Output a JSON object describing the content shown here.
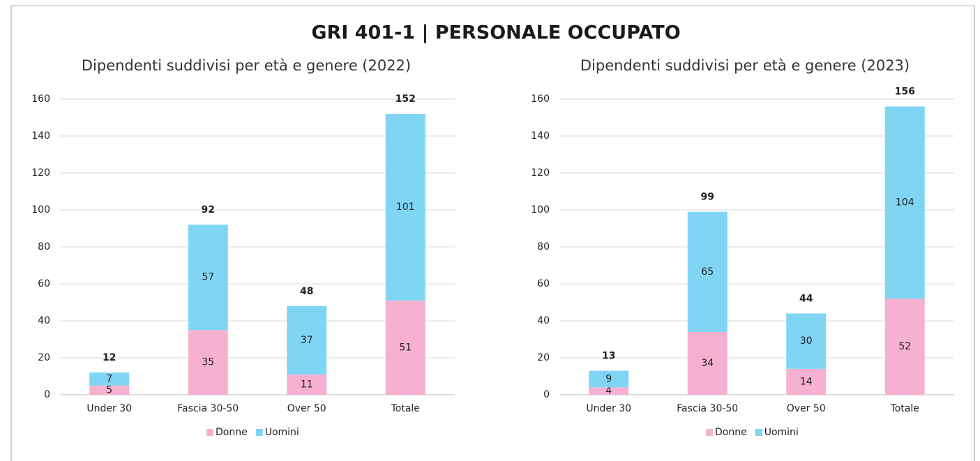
{
  "title": "GRI 401-1 | PERSONALE OCCUPATO",
  "chart_data": [
    {
      "type": "bar",
      "stacked": true,
      "title": "Dipendenti suddivisi per età e genere (2022)",
      "categories": [
        "Under 30",
        "Fascia 30-50",
        "Over 50",
        "Totale"
      ],
      "series": [
        {
          "name": "Donne",
          "color": "#f5b1cf",
          "values": [
            5,
            35,
            11,
            51
          ]
        },
        {
          "name": "Uomini",
          "color": "#80d4f4",
          "values": [
            7,
            57,
            37,
            101
          ]
        }
      ],
      "totals": [
        12,
        92,
        48,
        152
      ],
      "ylim": [
        0,
        160
      ],
      "yticks": [
        0,
        20,
        40,
        60,
        80,
        100,
        120,
        140,
        160
      ],
      "grid": true,
      "legend": "bottom"
    },
    {
      "type": "bar",
      "stacked": true,
      "title": "Dipendenti suddivisi per età e genere (2023)",
      "categories": [
        "Under 30",
        "Fascia 30-50",
        "Over 50",
        "Totale"
      ],
      "series": [
        {
          "name": "Donne",
          "color": "#f5b1cf",
          "values": [
            4,
            34,
            14,
            52
          ]
        },
        {
          "name": "Uomini",
          "color": "#80d4f4",
          "values": [
            9,
            65,
            30,
            104
          ]
        }
      ],
      "totals": [
        13,
        99,
        44,
        156
      ],
      "ylim": [
        0,
        160
      ],
      "yticks": [
        0,
        20,
        40,
        60,
        80,
        100,
        120,
        140,
        160
      ],
      "grid": true,
      "legend": "bottom"
    }
  ]
}
